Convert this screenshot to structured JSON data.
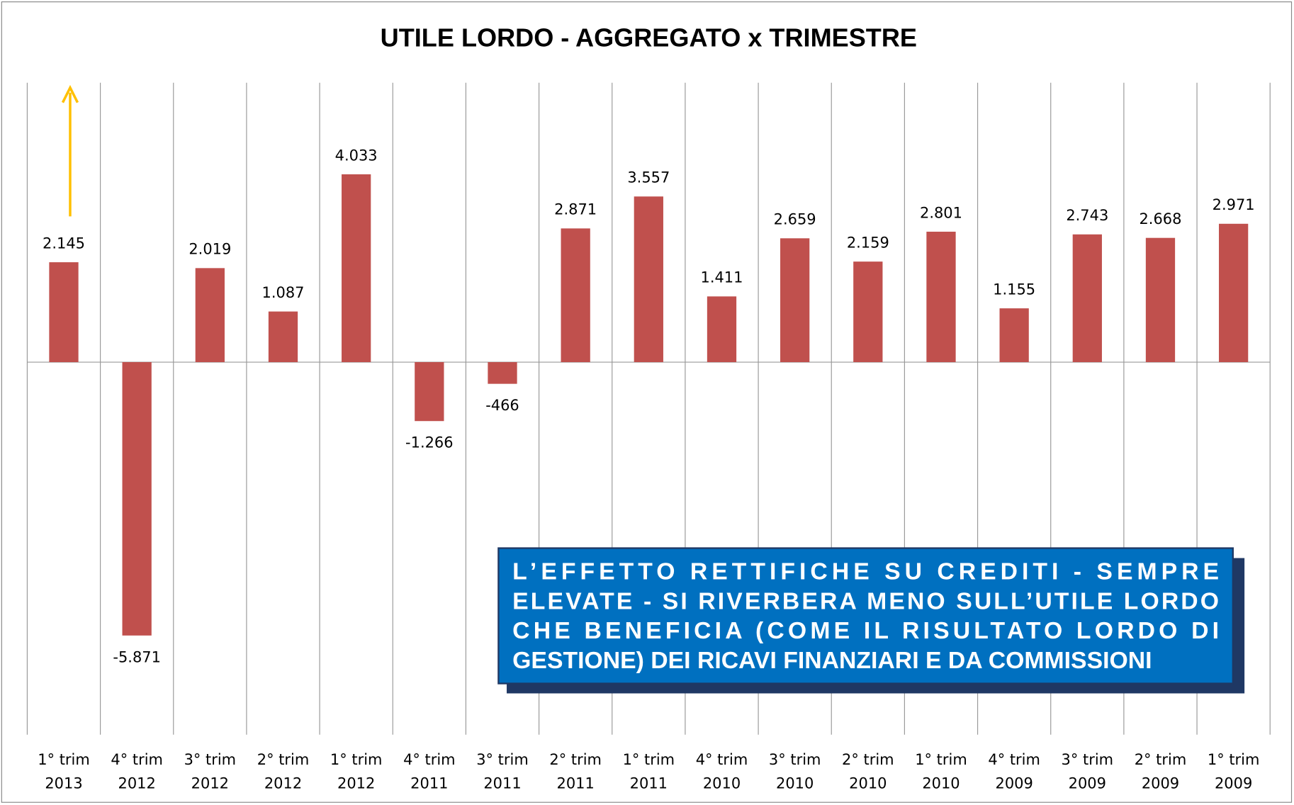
{
  "chart_data": {
    "type": "bar",
    "title": "UTILE LORDO - AGGREGATO x TRIMESTRE",
    "categories": [
      [
        "1° trim",
        "2013"
      ],
      [
        "4° trim",
        "2012"
      ],
      [
        "3° trim",
        "2012"
      ],
      [
        "2° trim",
        "2012"
      ],
      [
        "1° trim",
        "2012"
      ],
      [
        "4° trim",
        "2011"
      ],
      [
        "3° trim",
        "2011"
      ],
      [
        "2° trim",
        "2011"
      ],
      [
        "1° trim",
        "2011"
      ],
      [
        "4° trim",
        "2010"
      ],
      [
        "3° trim",
        "2010"
      ],
      [
        "2° trim",
        "2010"
      ],
      [
        "1° trim",
        "2010"
      ],
      [
        "4° trim",
        "2009"
      ],
      [
        "3° trim",
        "2009"
      ],
      [
        "2° trim",
        "2009"
      ],
      [
        "1° trim",
        "2009"
      ]
    ],
    "values": [
      2145,
      -5871,
      2019,
      1087,
      4033,
      -1266,
      -466,
      2871,
      3557,
      1411,
      2659,
      2159,
      2801,
      1155,
      2743,
      2668,
      2971
    ],
    "value_labels": [
      "2.145",
      "-5.871",
      "2.019",
      "1.087",
      "4.033",
      "-1.266",
      "-466",
      "2.871",
      "3.557",
      "1.411",
      "2.659",
      "2.159",
      "2.801",
      "1.155",
      "2.743",
      "2.668",
      "2.971"
    ],
    "color": "#c0504d",
    "ylim": [
      -8000,
      6000
    ],
    "annotation": [
      "L’EFFETTO RETTIFICHE SU CREDITI - SEMPRE",
      "ELEVATE - SI RIVERBERA MENO SULL’UTILE LORDO",
      "CHE BENEFICIA (COME IL RISULTATO LORDO DI",
      "GESTIONE) DEI RICAVI FINANZIARI E DA COMMISSIONI"
    ]
  }
}
